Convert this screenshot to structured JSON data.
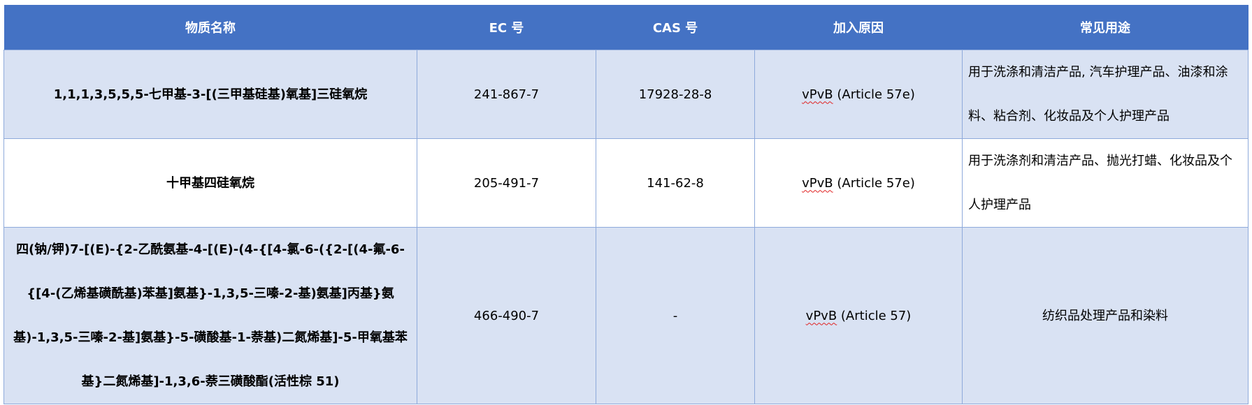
{
  "table": {
    "headers": [
      "物质名称",
      "EC 号",
      "CAS 号",
      "加入原因",
      "常见用途"
    ],
    "rows": [
      {
        "name": "1,1,1,3,5,5,5-七甲基-3-[(三甲基硅基)氧基]三硅氧烷",
        "ec": "241-867-7",
        "cas": "17928-28-8",
        "reason_prefix": "vPvB",
        "reason_suffix": " (Article 57e)",
        "use": "用于洗涤和清洁产品, 汽车护理产品、油漆和涂料、粘合剂、化妆品及个人护理产品"
      },
      {
        "name": "十甲基四硅氧烷",
        "ec": "205-491-7",
        "cas": "141-62-8",
        "reason_prefix": "vPvB",
        "reason_suffix": " (Article 57e)",
        "use": "用于洗涤剂和清洁产品、抛光打蜡、化妆品及个人护理产品"
      },
      {
        "name": "四(钠/钾)7-[(E)-{2-乙酰氨基-4-[(E)-(4-{[4-氯-6-({2-[(4-氟-6-{[4-(乙烯基磺酰基)苯基]氨基}-1,3,5-三嗪-2-基)氨基]丙基}氨基)-1,3,5-三嗪-2-基]氨基}-5-磺酸基-1-萘基)二氮烯基]-5-甲氧基苯基}二氮烯基]-1,3,6-萘三磺酸酯(活性棕 51)",
        "ec": "466-490-7",
        "cas": "-",
        "reason_prefix": "vPvB",
        "reason_suffix": " (Article 57)",
        "use": "纺织品处理产品和染料"
      }
    ]
  },
  "colors": {
    "header_bg": "#4472c4",
    "band_bg": "#d9e2f3",
    "border": "#8eaadb",
    "spellcheck": "#e02020"
  }
}
